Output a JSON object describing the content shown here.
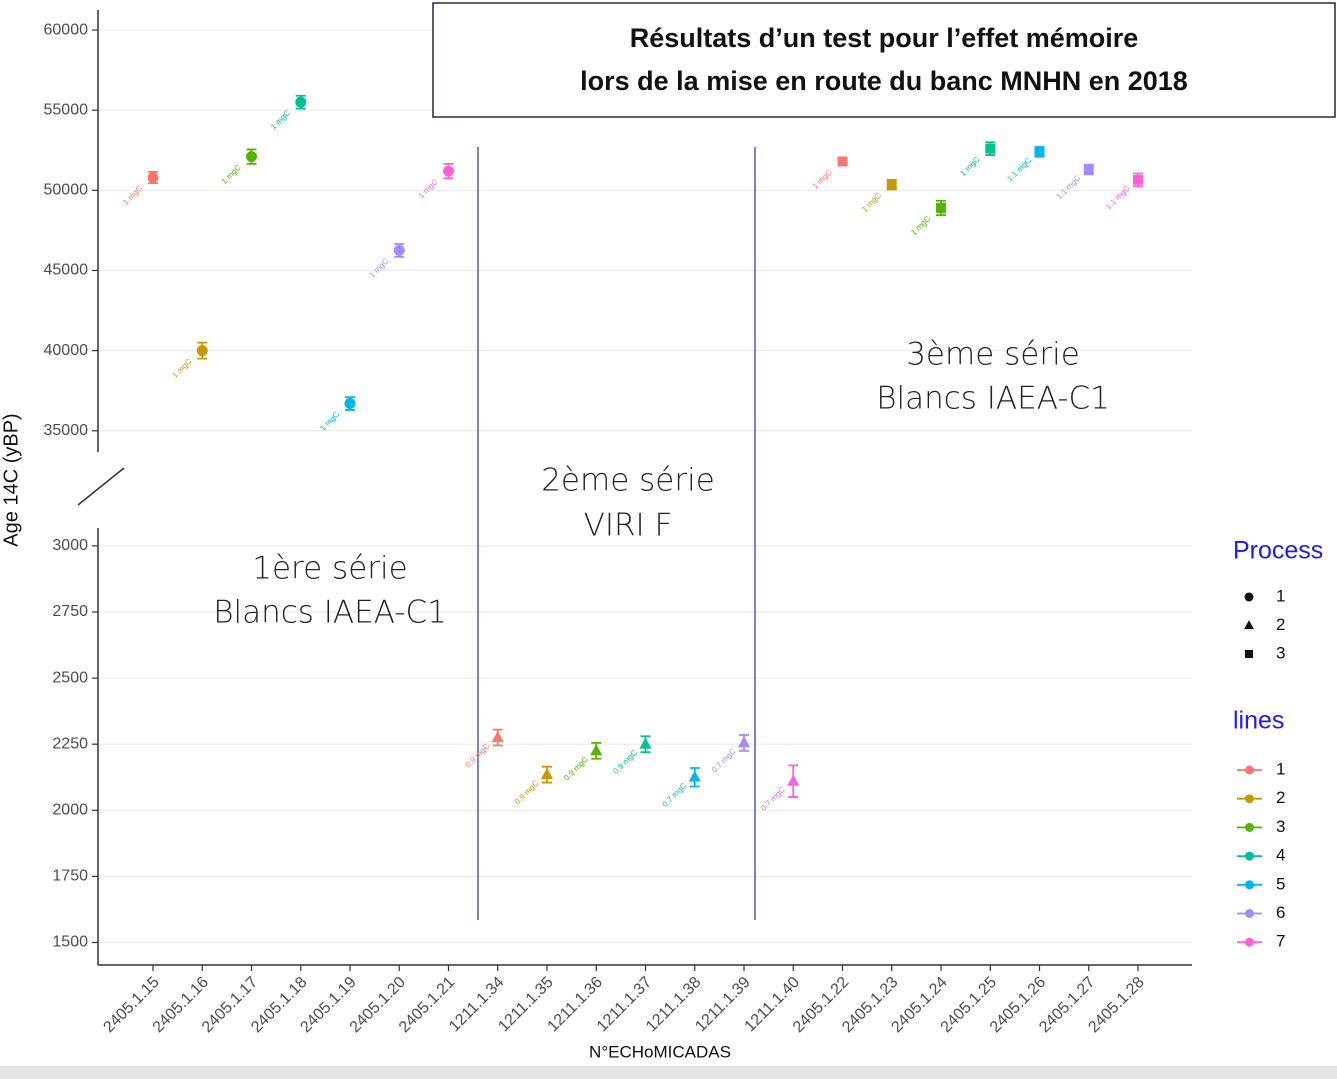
{
  "chart_data": {
    "type": "scatter",
    "title": [
      "Résultats d’un test pour l’effet mémoire",
      "lors de la mise en route du banc MNHN en 2018"
    ],
    "x_label": "N°ECHoMICADAS",
    "y_label": "Age 14C (yBP)",
    "categories": [
      "2405.1.15",
      "2405.1.16",
      "2405.1.17",
      "2405.1.18",
      "2405.1.19",
      "2405.1.20",
      "2405.1.21",
      "1211.1.34",
      "1211.1.35",
      "1211.1.36",
      "1211.1.37",
      "1211.1.38",
      "1211.1.39",
      "1211.1.40",
      "2405.1.22",
      "2405.1.23",
      "2405.1.24",
      "2405.1.25",
      "2405.1.26",
      "2405.1.27",
      "2405.1.28"
    ],
    "values": [
      50800,
      40000,
      52100,
      55500,
      36700,
      46250,
      51200,
      2275,
      2135,
      2225,
      2250,
      2125,
      2255,
      2110,
      51800,
      50350,
      48900,
      52600,
      52400,
      51300,
      50650
    ],
    "errors": [
      350,
      500,
      450,
      400,
      400,
      400,
      450,
      30,
      30,
      30,
      30,
      35,
      30,
      60,
      250,
      300,
      450,
      400,
      300,
      300,
      400
    ],
    "process": [
      1,
      1,
      1,
      1,
      1,
      1,
      1,
      2,
      2,
      2,
      2,
      2,
      2,
      2,
      3,
      3,
      3,
      3,
      3,
      3,
      3
    ],
    "line": [
      1,
      2,
      3,
      4,
      5,
      6,
      7,
      1,
      2,
      3,
      4,
      5,
      6,
      7,
      1,
      2,
      3,
      4,
      5,
      6,
      7
    ],
    "point_labels": [
      "1 mgC",
      "1 mgC",
      "1 mgC",
      "1 mgC",
      "1 mgC",
      "1 mgC",
      "1 mgC",
      "0.9 mgC",
      "0.9 mgC",
      "0.9 mgC",
      "0.9 mgC",
      "0.7 mgC",
      "0.7 mgC",
      "0.7 mgC",
      "1 mgC",
      "1 mgC",
      "1 mgC",
      "1 mgC",
      "1.1 mgC",
      "1.1 mgC",
      "1.1 mgC"
    ],
    "panels": [
      {
        "ylim": [
          33800,
          61250
        ],
        "yticks": [
          35000,
          40000,
          45000,
          50000,
          55000,
          60000
        ]
      },
      {
        "ylim": [
          1415,
          3060
        ],
        "yticks": [
          1500,
          1750,
          2000,
          2250,
          2500,
          2750,
          3000
        ]
      }
    ],
    "grid": true,
    "annotations": [
      [
        "1ère série",
        "Blancs IAEA-C1"
      ],
      [
        "2ème série",
        "VIRI F"
      ],
      [
        "3ème série",
        "Blancs IAEA-C1"
      ]
    ],
    "process_legend": {
      "title": "Process",
      "items": [
        {
          "name": "1",
          "shape": "circle"
        },
        {
          "name": "2",
          "shape": "triangle"
        },
        {
          "name": "3",
          "shape": "square"
        }
      ]
    },
    "line_legend": {
      "title": "lines",
      "items": [
        {
          "name": "1",
          "color": "#F8766D"
        },
        {
          "name": "2",
          "color": "#C49A00"
        },
        {
          "name": "3",
          "color": "#53B400"
        },
        {
          "name": "4",
          "color": "#00C094"
        },
        {
          "name": "5",
          "color": "#00B6EB"
        },
        {
          "name": "6",
          "color": "#A58AFF"
        },
        {
          "name": "7",
          "color": "#FB61D7"
        }
      ]
    }
  }
}
